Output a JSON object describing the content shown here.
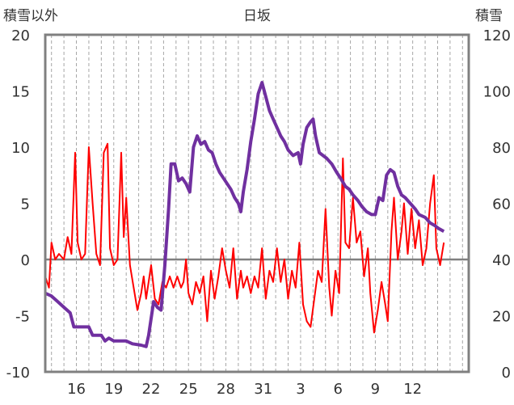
{
  "chart_data": {
    "type": "line",
    "title": "日坂",
    "left_axis_label": "積雪以外",
    "right_axis_label": "積雪",
    "left_ylim": [
      -10,
      20
    ],
    "left_yticks": [
      -10,
      -5,
      0,
      5,
      10,
      15,
      20
    ],
    "right_ylim": [
      0,
      120
    ],
    "right_yticks": [
      0,
      20,
      40,
      60,
      80,
      100,
      120
    ],
    "x_day_range": [
      13.5,
      47.5
    ],
    "x_ticks": [
      {
        "day": 16,
        "label": "16"
      },
      {
        "day": 19,
        "label": "19"
      },
      {
        "day": 22,
        "label": "22"
      },
      {
        "day": 25,
        "label": "25"
      },
      {
        "day": 28,
        "label": "28"
      },
      {
        "day": 31,
        "label": "31"
      },
      {
        "day": 34,
        "label": "3"
      },
      {
        "day": 37,
        "label": "6"
      },
      {
        "day": 40,
        "label": "9"
      },
      {
        "day": 43,
        "label": "12"
      }
    ],
    "grid": "vertical dashed, one per day",
    "colors": {
      "temperature": "#ff0000",
      "snow_depth": "#7030a0",
      "frame": "#808080"
    },
    "series": [
      {
        "axis": "left",
        "color": "#ff0000",
        "points": [
          [
            13.5,
            -1.5
          ],
          [
            13.8,
            -2.5
          ],
          [
            14.0,
            1.5
          ],
          [
            14.3,
            0.0
          ],
          [
            14.6,
            0.5
          ],
          [
            15.0,
            0.0
          ],
          [
            15.3,
            2.0
          ],
          [
            15.6,
            0.5
          ],
          [
            15.9,
            9.5
          ],
          [
            16.1,
            1.5
          ],
          [
            16.4,
            0.0
          ],
          [
            16.7,
            0.5
          ],
          [
            17.0,
            10.0
          ],
          [
            17.3,
            5.0
          ],
          [
            17.6,
            0.5
          ],
          [
            17.9,
            -0.5
          ],
          [
            18.2,
            9.5
          ],
          [
            18.5,
            10.3
          ],
          [
            18.7,
            1.0
          ],
          [
            19.0,
            -0.5
          ],
          [
            19.3,
            0.0
          ],
          [
            19.6,
            9.5
          ],
          [
            19.8,
            2.0
          ],
          [
            20.0,
            5.5
          ],
          [
            20.3,
            -0.5
          ],
          [
            20.6,
            -2.5
          ],
          [
            20.9,
            -4.5
          ],
          [
            21.2,
            -3.0
          ],
          [
            21.4,
            -1.5
          ],
          [
            21.6,
            -3.5
          ],
          [
            21.8,
            -2.0
          ],
          [
            22.0,
            -0.5
          ],
          [
            22.3,
            -3.5
          ],
          [
            22.6,
            -4.0
          ],
          [
            22.9,
            -2.0
          ],
          [
            23.2,
            -2.5
          ],
          [
            23.5,
            -1.5
          ],
          [
            23.8,
            -2.5
          ],
          [
            24.1,
            -1.5
          ],
          [
            24.4,
            -2.5
          ],
          [
            24.6,
            -2.0
          ],
          [
            24.8,
            0.0
          ],
          [
            25.0,
            -3.0
          ],
          [
            25.3,
            -4.0
          ],
          [
            25.6,
            -2.0
          ],
          [
            25.9,
            -3.0
          ],
          [
            26.2,
            -1.5
          ],
          [
            26.5,
            -5.5
          ],
          [
            26.8,
            -1.0
          ],
          [
            27.1,
            -3.5
          ],
          [
            27.4,
            -1.5
          ],
          [
            27.7,
            1.0
          ],
          [
            28.0,
            -1.0
          ],
          [
            28.3,
            -2.5
          ],
          [
            28.6,
            1.0
          ],
          [
            28.9,
            -3.5
          ],
          [
            29.2,
            -1.0
          ],
          [
            29.4,
            -2.5
          ],
          [
            29.7,
            -1.5
          ],
          [
            30.0,
            -3.0
          ],
          [
            30.3,
            -1.5
          ],
          [
            30.6,
            -2.5
          ],
          [
            30.9,
            1.0
          ],
          [
            31.2,
            -3.5
          ],
          [
            31.5,
            -1.0
          ],
          [
            31.8,
            -2.0
          ],
          [
            32.1,
            1.0
          ],
          [
            32.4,
            -2.0
          ],
          [
            32.7,
            0.0
          ],
          [
            33.0,
            -3.5
          ],
          [
            33.3,
            -1.0
          ],
          [
            33.6,
            -2.5
          ],
          [
            33.9,
            1.5
          ],
          [
            34.2,
            -4.0
          ],
          [
            34.5,
            -5.5
          ],
          [
            34.8,
            -6.0
          ],
          [
            35.1,
            -3.5
          ],
          [
            35.4,
            -1.0
          ],
          [
            35.7,
            -2.0
          ],
          [
            36.0,
            4.5
          ],
          [
            36.3,
            -2.5
          ],
          [
            36.5,
            -5.0
          ],
          [
            36.8,
            -1.0
          ],
          [
            37.1,
            -3.0
          ],
          [
            37.4,
            9.0
          ],
          [
            37.6,
            1.5
          ],
          [
            37.9,
            1.0
          ],
          [
            38.2,
            5.5
          ],
          [
            38.5,
            1.5
          ],
          [
            38.8,
            2.5
          ],
          [
            39.1,
            -1.5
          ],
          [
            39.4,
            1.0
          ],
          [
            39.6,
            -3.0
          ],
          [
            39.9,
            -6.5
          ],
          [
            40.2,
            -4.5
          ],
          [
            40.5,
            -2.0
          ],
          [
            40.8,
            -4.0
          ],
          [
            41.0,
            -5.5
          ],
          [
            41.3,
            2.5
          ],
          [
            41.5,
            5.5
          ],
          [
            41.8,
            0.0
          ],
          [
            42.1,
            2.5
          ],
          [
            42.3,
            5.0
          ],
          [
            42.6,
            0.5
          ],
          [
            42.9,
            4.5
          ],
          [
            43.2,
            1.0
          ],
          [
            43.5,
            3.5
          ],
          [
            43.8,
            -0.5
          ],
          [
            44.1,
            1.0
          ],
          [
            44.4,
            5.0
          ],
          [
            44.7,
            7.5
          ],
          [
            44.9,
            1.0
          ],
          [
            45.2,
            -0.5
          ],
          [
            45.5,
            1.5
          ]
        ]
      },
      {
        "axis": "right",
        "color": "#7030a0",
        "points": [
          [
            13.5,
            28
          ],
          [
            14.0,
            27
          ],
          [
            14.5,
            25
          ],
          [
            15.0,
            23
          ],
          [
            15.5,
            21
          ],
          [
            15.8,
            16
          ],
          [
            16.5,
            16
          ],
          [
            17.0,
            16
          ],
          [
            17.3,
            13
          ],
          [
            18.0,
            13
          ],
          [
            18.3,
            11
          ],
          [
            18.6,
            12
          ],
          [
            19.0,
            11
          ],
          [
            20.0,
            11
          ],
          [
            20.5,
            10
          ],
          [
            21.2,
            9.5
          ],
          [
            21.6,
            9
          ],
          [
            21.8,
            13
          ],
          [
            22.2,
            25
          ],
          [
            22.5,
            23
          ],
          [
            22.8,
            22
          ],
          [
            23.1,
            38
          ],
          [
            23.4,
            58
          ],
          [
            23.6,
            74
          ],
          [
            23.9,
            74
          ],
          [
            24.2,
            68
          ],
          [
            24.5,
            69
          ],
          [
            24.8,
            67
          ],
          [
            25.1,
            64
          ],
          [
            25.4,
            80
          ],
          [
            25.7,
            84
          ],
          [
            26.0,
            81
          ],
          [
            26.3,
            82
          ],
          [
            26.6,
            79
          ],
          [
            26.9,
            78
          ],
          [
            27.2,
            74
          ],
          [
            27.5,
            71
          ],
          [
            27.8,
            69
          ],
          [
            28.1,
            67
          ],
          [
            28.4,
            65
          ],
          [
            28.7,
            62
          ],
          [
            29.0,
            60
          ],
          [
            29.2,
            57
          ],
          [
            29.4,
            64
          ],
          [
            29.7,
            72
          ],
          [
            30.0,
            82
          ],
          [
            30.3,
            90
          ],
          [
            30.6,
            99
          ],
          [
            30.9,
            103
          ],
          [
            31.2,
            98
          ],
          [
            31.5,
            93
          ],
          [
            31.8,
            90
          ],
          [
            32.1,
            87
          ],
          [
            32.4,
            84
          ],
          [
            32.7,
            82
          ],
          [
            33.0,
            79
          ],
          [
            33.4,
            77
          ],
          [
            33.8,
            78
          ],
          [
            34.0,
            74
          ],
          [
            34.2,
            81
          ],
          [
            34.5,
            87
          ],
          [
            34.8,
            89
          ],
          [
            35.0,
            90
          ],
          [
            35.2,
            84
          ],
          [
            35.5,
            78
          ],
          [
            35.8,
            77
          ],
          [
            36.1,
            76
          ],
          [
            36.5,
            74
          ],
          [
            36.9,
            71
          ],
          [
            37.2,
            69
          ],
          [
            37.6,
            66
          ],
          [
            37.9,
            65
          ],
          [
            38.2,
            63
          ],
          [
            38.6,
            61
          ],
          [
            38.9,
            59
          ],
          [
            39.3,
            57
          ],
          [
            39.7,
            56
          ],
          [
            40.0,
            56
          ],
          [
            40.3,
            62
          ],
          [
            40.6,
            61
          ],
          [
            40.9,
            70
          ],
          [
            41.2,
            72
          ],
          [
            41.5,
            71
          ],
          [
            41.8,
            66
          ],
          [
            42.1,
            63
          ],
          [
            42.4,
            62
          ],
          [
            42.8,
            60
          ],
          [
            43.2,
            58
          ],
          [
            43.5,
            56
          ],
          [
            44.0,
            55
          ],
          [
            44.4,
            53
          ],
          [
            44.8,
            52
          ],
          [
            45.1,
            51
          ],
          [
            45.5,
            50
          ]
        ]
      }
    ]
  }
}
